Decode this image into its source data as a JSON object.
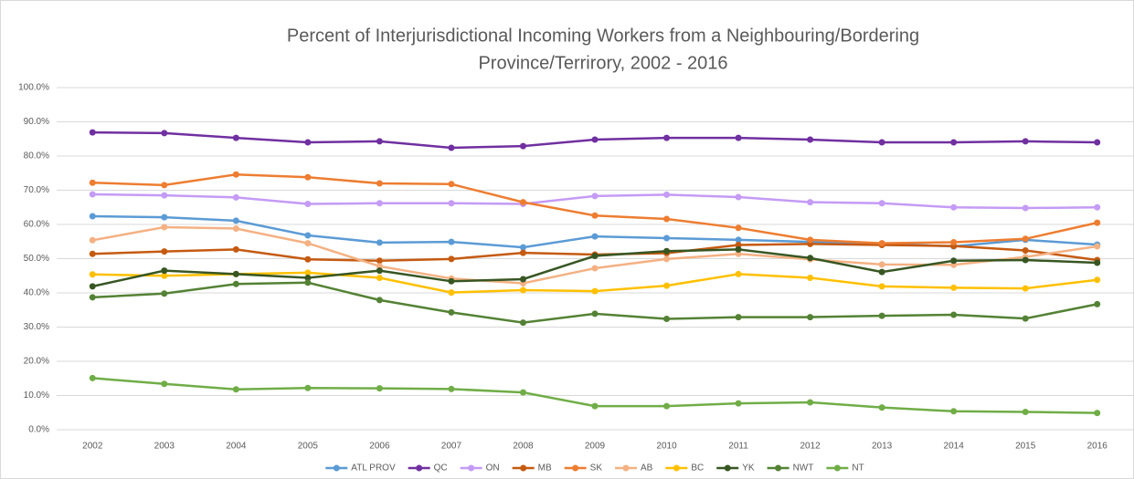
{
  "chart_data": {
    "type": "line",
    "title": [
      "Percent of Interjurisdictional Incoming Workers from a Neighbouring/Bordering",
      "Province/Terrirory, 2002 - 2016"
    ],
    "categories": [
      "2002",
      "2003",
      "2004",
      "2005",
      "2006",
      "2007",
      "2008",
      "2009",
      "2010",
      "2011",
      "2012",
      "2013",
      "2014",
      "2015",
      "2016"
    ],
    "ylim": [
      0,
      100
    ],
    "yticks": [
      {
        "value": 0,
        "label": "0.0%"
      },
      {
        "value": 10,
        "label": "10.0%"
      },
      {
        "value": 20,
        "label": "20.0%"
      },
      {
        "value": 30,
        "label": "30.0%"
      },
      {
        "value": 40,
        "label": "40.0%"
      },
      {
        "value": 50,
        "label": "50.0%"
      },
      {
        "value": 60,
        "label": "60.0%"
      },
      {
        "value": 70,
        "label": "70.0%"
      },
      {
        "value": 80,
        "label": "80.0%"
      },
      {
        "value": 90,
        "label": "90.0%"
      },
      {
        "value": 100,
        "label": "100.0%"
      }
    ],
    "grid": true,
    "legend": "bottom",
    "series": [
      {
        "name": "ATL PROV",
        "color": "#5b9bd5",
        "values": [
          62.4,
          62.1,
          61.1,
          56.8,
          54.7,
          54.9,
          53.3,
          56.5,
          56.0,
          55.5,
          54.9,
          54.4,
          53.6,
          55.5,
          54.1
        ]
      },
      {
        "name": "QC",
        "color": "#7030a0",
        "values": [
          86.9,
          86.7,
          85.3,
          84.0,
          84.3,
          82.4,
          82.9,
          84.8,
          85.3,
          85.3,
          84.8,
          84.0,
          84.0,
          84.3,
          84.0
        ]
      },
      {
        "name": "ON",
        "color": "#c49bf5",
        "values": [
          68.8,
          68.5,
          67.9,
          66.0,
          66.2,
          66.2,
          66.0,
          68.3,
          68.7,
          68.0,
          66.5,
          66.2,
          65.0,
          64.8,
          65.0
        ]
      },
      {
        "name": "MB",
        "color": "#c55a11",
        "values": [
          51.4,
          52.1,
          52.7,
          49.8,
          49.4,
          49.9,
          51.7,
          51.2,
          51.6,
          54.0,
          54.3,
          54.0,
          53.7,
          52.4,
          49.6
        ]
      },
      {
        "name": "SK",
        "color": "#ed7d31",
        "values": [
          72.2,
          71.5,
          74.6,
          73.8,
          72.0,
          71.8,
          66.5,
          62.6,
          61.6,
          59.0,
          55.5,
          54.5,
          54.8,
          55.8,
          60.5
        ]
      },
      {
        "name": "AB",
        "color": "#f4b183",
        "values": [
          55.4,
          59.2,
          58.8,
          54.5,
          47.8,
          44.2,
          42.8,
          47.2,
          49.9,
          51.4,
          49.8,
          48.3,
          48.2,
          50.5,
          53.6
        ]
      },
      {
        "name": "BC",
        "color": "#ffc000",
        "values": [
          45.4,
          45.0,
          45.5,
          45.9,
          44.4,
          40.1,
          40.8,
          40.5,
          42.1,
          45.5,
          44.4,
          41.9,
          41.5,
          41.3,
          43.8
        ]
      },
      {
        "name": "YK",
        "color": "#375623",
        "values": [
          41.9,
          46.5,
          45.5,
          44.4,
          46.5,
          43.4,
          44.0,
          50.8,
          52.2,
          52.7,
          50.2,
          46.1,
          49.4,
          49.6,
          48.8
        ]
      },
      {
        "name": "NWT",
        "color": "#548235",
        "values": [
          38.7,
          39.8,
          42.6,
          43.0,
          37.9,
          34.3,
          31.3,
          33.9,
          32.4,
          32.9,
          32.9,
          33.3,
          33.6,
          32.5,
          36.7
        ]
      },
      {
        "name": "NT",
        "color": "#70ad47",
        "values": [
          15.1,
          13.4,
          11.8,
          12.2,
          12.1,
          11.9,
          10.9,
          6.9,
          6.9,
          7.7,
          8.0,
          6.5,
          5.4,
          5.2,
          4.9
        ]
      }
    ]
  }
}
